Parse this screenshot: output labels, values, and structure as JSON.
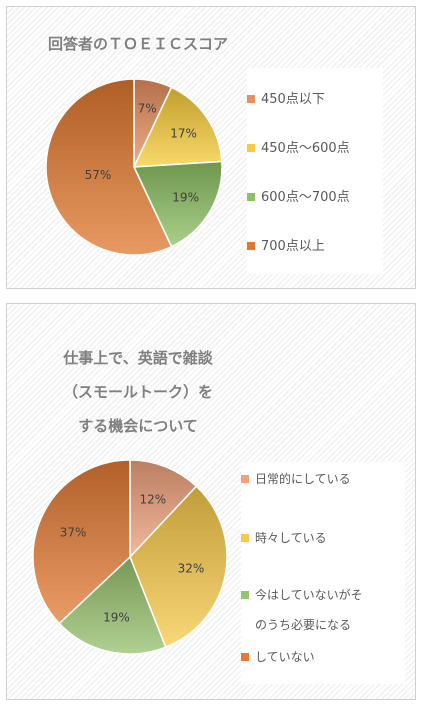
{
  "chart_data": [
    {
      "type": "pie",
      "title": "回答者のＴＯＥＩＣスコア",
      "categories": [
        "450点以下",
        "450点～600点",
        "600点～700点",
        "700点以上"
      ],
      "values": [
        7,
        17,
        19,
        57
      ],
      "labels": [
        "7%",
        "17%",
        "19%",
        "57%"
      ],
      "colors": [
        "#E8905F",
        "#F7CC3A",
        "#8DC063",
        "#E0782E"
      ],
      "legend": "right"
    },
    {
      "type": "pie",
      "title": "仕事上で、英語で雑談\n（スモールトーク）を\nする機会について",
      "categories": [
        "日常的にしている",
        "時々している",
        "今はしていないがそ\nのうち必要になる",
        "していない"
      ],
      "values": [
        12,
        32,
        19,
        37
      ],
      "labels": [
        "12%",
        "32%",
        "19%",
        "37%"
      ],
      "colors": [
        "#EFA27B",
        "#F8C94A",
        "#97C26E",
        "#E37B34"
      ],
      "legend": "right"
    }
  ]
}
